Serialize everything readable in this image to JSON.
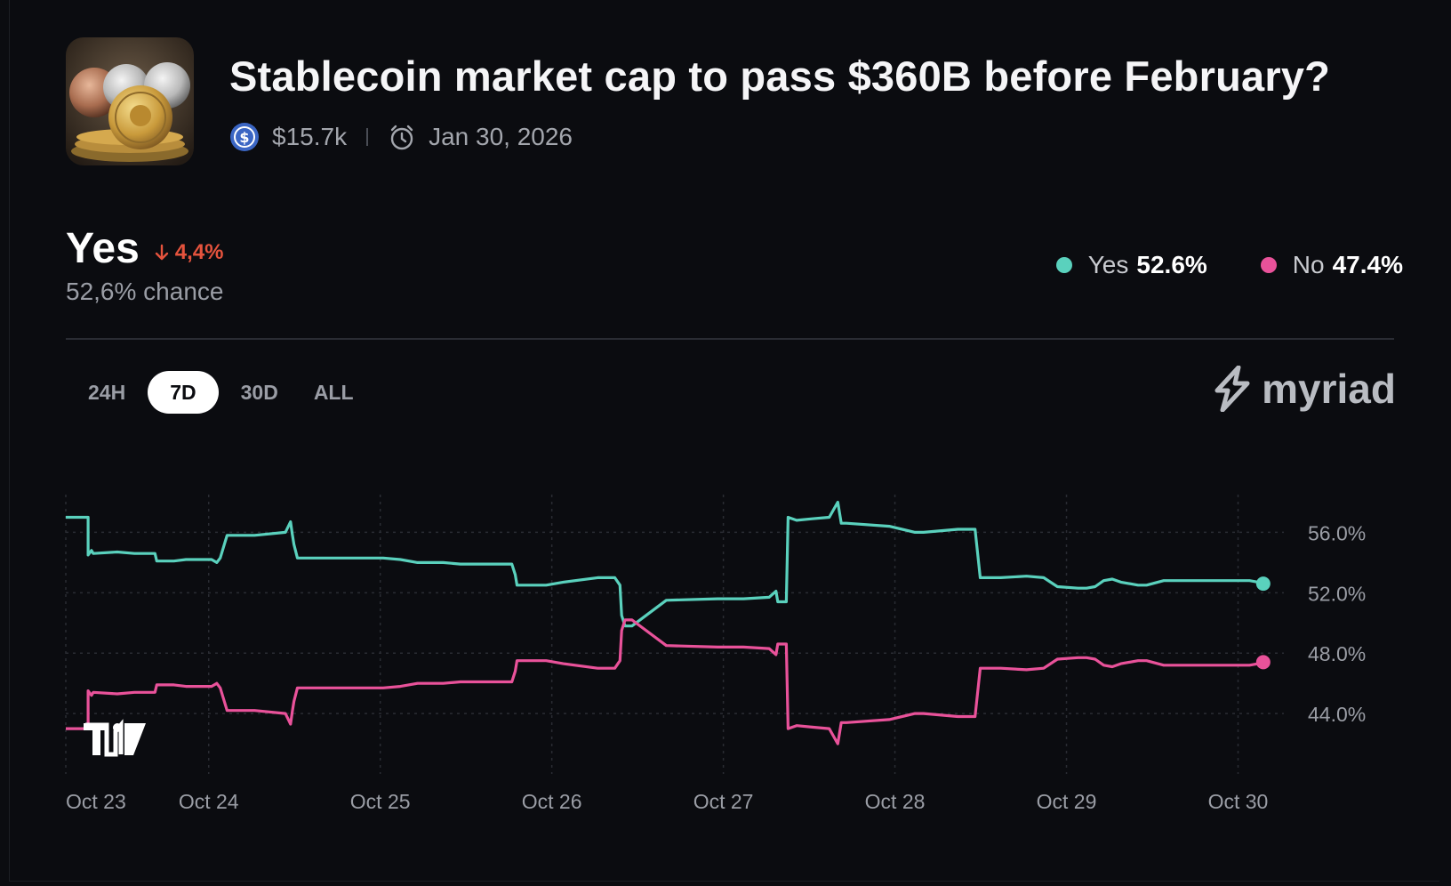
{
  "market": {
    "title": "Stablecoin market cap to pass $360B before February?",
    "volume": "$15.7k",
    "end_date": "Jan 30, 2026"
  },
  "headline": {
    "outcome": "Yes",
    "change": "4,4%",
    "chance": "52,6% chance"
  },
  "legend": {
    "yes_label": "Yes",
    "yes_value": "52.6%",
    "no_label": "No",
    "no_value": "47.4%"
  },
  "tabs": [
    "24H",
    "7D",
    "30D",
    "ALL"
  ],
  "active_tab": "7D",
  "brand": "myriad",
  "colors": {
    "yes": "#5ad1bd",
    "no": "#e9529a",
    "down": "#e5533d",
    "grid": "#2a2c33"
  },
  "chart_data": {
    "type": "line",
    "x_unit": "days since Oct 23 00:00",
    "xlim": [
      0,
      7.1
    ],
    "ylim": [
      40.0,
      58.5
    ],
    "y_ticks": [
      44.0,
      48.0,
      52.0,
      56.0
    ],
    "y_tick_labels": [
      "44.0%",
      "48.0%",
      "52.0%",
      "56.0%"
    ],
    "x_ticks": [
      0,
      0.833,
      1.833,
      2.833,
      3.833,
      4.833,
      5.833,
      6.833
    ],
    "x_tick_labels": [
      "Oct 23",
      "Oct 24",
      "Oct 25",
      "Oct 26",
      "Oct 27",
      "Oct 28",
      "Oct 29",
      "Oct 30"
    ],
    "grid": true,
    "series": [
      {
        "name": "Yes",
        "x": [
          0,
          0.13,
          0.13,
          0.15,
          0.16,
          0.3,
          0.4,
          0.52,
          0.53,
          0.63,
          0.7,
          0.85,
          0.88,
          0.9,
          0.94,
          1.1,
          1.28,
          1.31,
          1.32,
          1.33,
          1.35,
          1.45,
          1.6,
          1.85,
          1.95,
          2.05,
          2.2,
          2.3,
          2.4,
          2.6,
          2.62,
          2.63,
          2.8,
          2.9,
          3.1,
          3.2,
          3.23,
          3.24,
          3.26,
          3.3,
          3.5,
          3.8,
          3.95,
          4.1,
          4.14,
          4.15,
          4.2,
          4.21,
          4.26,
          4.35,
          4.45,
          4.5,
          4.52,
          4.55,
          4.8,
          4.95,
          5.0,
          5.2,
          5.3,
          5.33,
          5.34,
          5.45,
          5.6,
          5.7,
          5.78,
          5.9,
          5.95,
          6.0,
          6.05,
          6.1,
          6.15,
          6.25,
          6.3,
          6.4,
          6.5,
          6.7,
          6.9,
          6.95,
          6.97,
          6.98
        ],
        "values": [
          57.0,
          57.0,
          54.5,
          54.8,
          54.6,
          54.7,
          54.6,
          54.6,
          54.1,
          54.1,
          54.2,
          54.2,
          54.0,
          54.3,
          55.8,
          55.8,
          56.0,
          56.7,
          55.9,
          55.2,
          54.3,
          54.3,
          54.3,
          54.3,
          54.2,
          54.0,
          54.0,
          53.9,
          53.9,
          53.9,
          53.2,
          52.5,
          52.5,
          52.7,
          53.0,
          53.0,
          52.5,
          50.5,
          49.8,
          49.8,
          51.5,
          51.6,
          51.6,
          51.7,
          52.1,
          51.4,
          51.4,
          57.0,
          56.8,
          56.9,
          57.0,
          58.0,
          56.6,
          56.6,
          56.4,
          56.0,
          56.0,
          56.2,
          56.2,
          53.0,
          53.0,
          53.0,
          53.1,
          53.0,
          52.4,
          52.3,
          52.3,
          52.4,
          52.8,
          52.9,
          52.7,
          52.5,
          52.5,
          52.8,
          52.8,
          52.8,
          52.8,
          52.7,
          52.7,
          52.6
        ]
      },
      {
        "name": "No",
        "x": [
          0,
          0.13,
          0.13,
          0.15,
          0.16,
          0.3,
          0.4,
          0.52,
          0.53,
          0.63,
          0.7,
          0.85,
          0.88,
          0.9,
          0.94,
          1.1,
          1.28,
          1.31,
          1.32,
          1.33,
          1.35,
          1.45,
          1.6,
          1.85,
          1.95,
          2.05,
          2.2,
          2.3,
          2.4,
          2.6,
          2.62,
          2.63,
          2.8,
          2.9,
          3.1,
          3.2,
          3.23,
          3.24,
          3.26,
          3.3,
          3.5,
          3.8,
          3.95,
          4.1,
          4.14,
          4.15,
          4.2,
          4.21,
          4.26,
          4.35,
          4.45,
          4.5,
          4.52,
          4.55,
          4.8,
          4.95,
          5.0,
          5.2,
          5.3,
          5.33,
          5.34,
          5.45,
          5.6,
          5.7,
          5.78,
          5.9,
          5.95,
          6.0,
          6.05,
          6.1,
          6.15,
          6.25,
          6.3,
          6.4,
          6.5,
          6.7,
          6.9,
          6.95,
          6.97,
          6.98
        ],
        "values": [
          43.0,
          43.0,
          45.5,
          45.2,
          45.4,
          45.3,
          45.4,
          45.4,
          45.9,
          45.9,
          45.8,
          45.8,
          46.0,
          45.7,
          44.2,
          44.2,
          44.0,
          43.3,
          44.1,
          44.8,
          45.7,
          45.7,
          45.7,
          45.7,
          45.8,
          46.0,
          46.0,
          46.1,
          46.1,
          46.1,
          46.8,
          47.5,
          47.5,
          47.3,
          47.0,
          47.0,
          47.5,
          49.5,
          50.2,
          50.2,
          48.5,
          48.4,
          48.4,
          48.3,
          47.9,
          48.6,
          48.6,
          43.0,
          43.2,
          43.1,
          43.0,
          42.0,
          43.4,
          43.4,
          43.6,
          44.0,
          44.0,
          43.8,
          43.8,
          47.0,
          47.0,
          47.0,
          46.9,
          47.0,
          47.6,
          47.7,
          47.7,
          47.6,
          47.2,
          47.1,
          47.3,
          47.5,
          47.5,
          47.2,
          47.2,
          47.2,
          47.2,
          47.3,
          47.3,
          47.4
        ]
      }
    ]
  }
}
